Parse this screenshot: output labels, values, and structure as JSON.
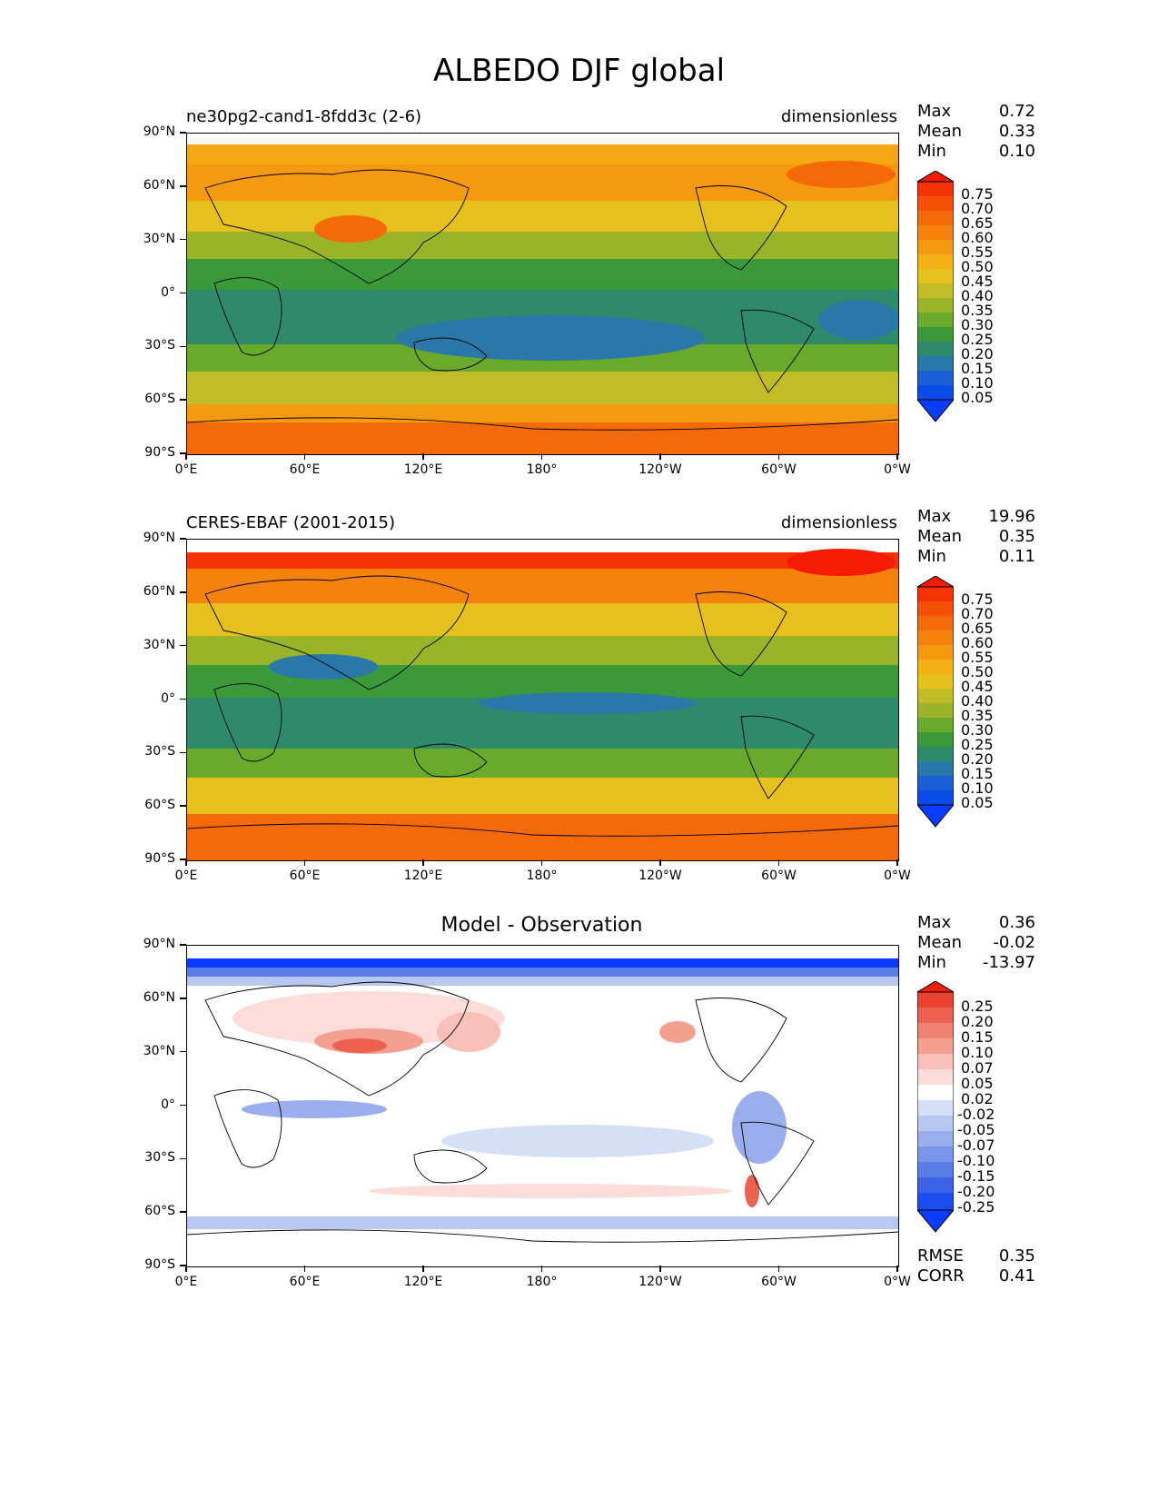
{
  "title": "ALBEDO DJF global",
  "panels": [
    {
      "left_label": "ne30pg2-cand1-8fdd3c (2-6)",
      "right_label": "dimensionless",
      "center_label": "",
      "stats": [
        {
          "label": "Max",
          "value": "0.72"
        },
        {
          "label": "Mean",
          "value": "0.33"
        },
        {
          "label": "Min",
          "value": "0.10"
        }
      ],
      "colorbar": [
        "0.75",
        "0.70",
        "0.65",
        "0.60",
        "0.55",
        "0.50",
        "0.45",
        "0.40",
        "0.35",
        "0.30",
        "0.25",
        "0.20",
        "0.15",
        "0.10",
        "0.05"
      ]
    },
    {
      "left_label": "CERES-EBAF (2001-2015)",
      "right_label": "dimensionless",
      "center_label": "",
      "stats": [
        {
          "label": "Max",
          "value": "19.96"
        },
        {
          "label": "Mean",
          "value": "0.35"
        },
        {
          "label": "Min",
          "value": "0.11"
        }
      ],
      "colorbar": [
        "0.75",
        "0.70",
        "0.65",
        "0.60",
        "0.55",
        "0.50",
        "0.45",
        "0.40",
        "0.35",
        "0.30",
        "0.25",
        "0.20",
        "0.15",
        "0.10",
        "0.05"
      ]
    },
    {
      "left_label": "",
      "right_label": "",
      "center_label": "Model - Observation",
      "stats": [
        {
          "label": "Max",
          "value": "0.36"
        },
        {
          "label": "Mean",
          "value": "-0.02"
        },
        {
          "label": "Min",
          "value": "-13.97"
        }
      ],
      "colorbar": [
        "0.25",
        "0.20",
        "0.15",
        "0.10",
        "0.07",
        "0.05",
        "0.02",
        "-0.02",
        "-0.05",
        "-0.07",
        "-0.10",
        "-0.15",
        "-0.20",
        "-0.25"
      ],
      "metrics": [
        {
          "label": "RMSE",
          "value": "0.35"
        },
        {
          "label": "CORR",
          "value": "0.41"
        }
      ]
    }
  ],
  "axes": {
    "y_ticks": [
      "90°N",
      "60°N",
      "30°N",
      "0°",
      "30°S",
      "60°S",
      "90°S"
    ],
    "x_ticks": [
      "0°E",
      "60°E",
      "120°E",
      "180°",
      "120°W",
      "60°W",
      "0°W"
    ]
  },
  "colors": {
    "albedo_scale": [
      "#0a3cff",
      "#1a5fd6",
      "#2a78a8",
      "#2e8a6a",
      "#3a9a3a",
      "#6aaa2a",
      "#9ab42a",
      "#c2bc28",
      "#e6c01c",
      "#f5b014",
      "#f59a10",
      "#f5820c",
      "#f56a08",
      "#f55006",
      "#f53204",
      "#f51a02"
    ],
    "diff_scale": [
      "#0a3cff",
      "#3a62e8",
      "#5a7ee8",
      "#7a96ea",
      "#9aaeee",
      "#b8c6f2",
      "#d6dff8",
      "#ffffff",
      "#fbdcd8",
      "#f8c0b8",
      "#f4a090",
      "#f08070",
      "#ec6050",
      "#e84030",
      "#f02008"
    ],
    "map_accent": "#ffffff"
  }
}
